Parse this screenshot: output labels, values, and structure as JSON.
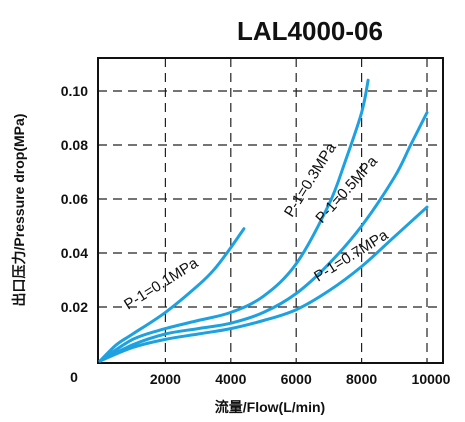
{
  "chart_data": {
    "type": "line",
    "title": "LAL4000-06",
    "xlabel": "流量/Flow(L/min)",
    "ylabel": "出口压力/Pressure drop(MPa)",
    "xlim": [
      0,
      10000
    ],
    "ylim": [
      0,
      0.11
    ],
    "xticks": [
      0,
      2000,
      4000,
      6000,
      8000,
      10000
    ],
    "yticks": [
      0.02,
      0.04,
      0.06,
      0.08,
      0.1
    ],
    "xtick_labels": [
      "0",
      "2000",
      "4000",
      "6000",
      "8000",
      "10000"
    ],
    "ytick_labels": [
      "0.02",
      "0.04",
      "0.06",
      "0.08",
      "0.10"
    ],
    "grid": true,
    "series": [
      {
        "name": "P-1=0.1MPa",
        "x": [
          0,
          500,
          1000,
          2000,
          3000,
          3500,
          4000,
          4400
        ],
        "y": [
          0,
          0.006,
          0.01,
          0.018,
          0.028,
          0.034,
          0.042,
          0.049
        ]
      },
      {
        "name": "P-1=0.3MPa",
        "x": [
          0,
          1000,
          2000,
          3000,
          4000,
          5000,
          6000,
          7000,
          7500,
          8000,
          8200
        ],
        "y": [
          0,
          0.008,
          0.012,
          0.015,
          0.018,
          0.024,
          0.036,
          0.058,
          0.074,
          0.092,
          0.104
        ]
      },
      {
        "name": "P-1=0.5MPa",
        "x": [
          0,
          1000,
          2000,
          3000,
          4000,
          5000,
          6000,
          7000,
          8000,
          9000,
          9500,
          10000
        ],
        "y": [
          0,
          0.006,
          0.01,
          0.012,
          0.014,
          0.018,
          0.025,
          0.036,
          0.05,
          0.068,
          0.08,
          0.092
        ]
      },
      {
        "name": "P-1=0.7MPa",
        "x": [
          0,
          1000,
          2000,
          3000,
          4000,
          5000,
          6000,
          7000,
          8000,
          9000,
          10000
        ],
        "y": [
          0,
          0.005,
          0.008,
          0.01,
          0.012,
          0.015,
          0.019,
          0.026,
          0.035,
          0.046,
          0.057
        ]
      }
    ]
  }
}
